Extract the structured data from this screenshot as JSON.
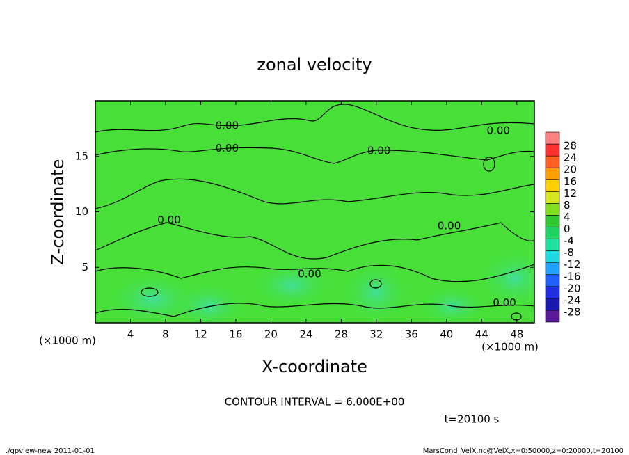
{
  "chart_data": {
    "type": "contour",
    "title": "zonal velocity",
    "x_label": "X-coordinate",
    "y_label": "Z-coordinate",
    "x_unit": "(×1000 m)",
    "y_unit": "(×1000 m)",
    "xlim": [
      0,
      50
    ],
    "xticks": [
      4,
      8,
      12,
      16,
      20,
      24,
      28,
      32,
      36,
      40,
      44,
      48
    ],
    "ylim": [
      0,
      20
    ],
    "yticks": [
      5,
      10,
      15
    ],
    "field_color": "#48e038",
    "contour_labels": [
      {
        "text": "0.00",
        "x": 15,
        "y": 17.75
      },
      {
        "text": "0.00",
        "x": 15,
        "y": 15.7
      },
      {
        "text": "0.00",
        "x": 32.3,
        "y": 15.5
      },
      {
        "text": "0.00",
        "x": 45.9,
        "y": 17.3
      },
      {
        "text": "0.00",
        "x": 8.4,
        "y": 9.25
      },
      {
        "text": "0.00",
        "x": 24.4,
        "y": 4.4
      },
      {
        "text": "0.00",
        "x": 40.3,
        "y": 8.7
      },
      {
        "text": "0.00",
        "x": 46.6,
        "y": 1.8
      }
    ],
    "colorbar": {
      "levels": [
        -28,
        -24,
        -20,
        -16,
        -12,
        -8,
        -4,
        0,
        4,
        8,
        12,
        16,
        20,
        24,
        28
      ],
      "colors": [
        "#5a1a9a",
        "#1a1ab0",
        "#2030e0",
        "#2060ff",
        "#20a0ff",
        "#20d8e0",
        "#20e0a0",
        "#20d060",
        "#30c830",
        "#80e020",
        "#d8e820",
        "#ffd000",
        "#ffa000",
        "#ff6020",
        "#ff3030",
        "#ff8080"
      ]
    },
    "contour_interval": "CONTOUR INTERVAL = 6.000E+00",
    "time_label": "t=20100 s",
    "footer_left": "./gpview-new   2011-01-01",
    "footer_right": "MarsCond_VelX.nc@VelX,x=0:50000,z=0:20000,t=20100"
  }
}
